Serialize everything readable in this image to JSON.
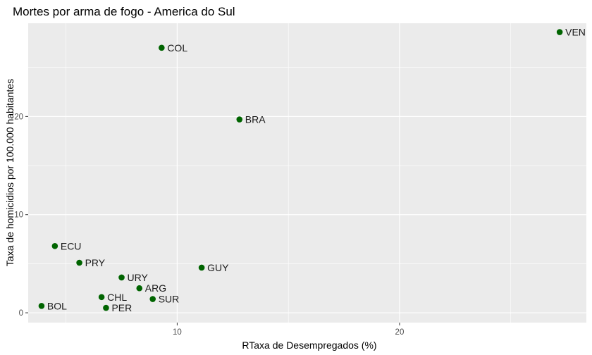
{
  "chart_data": {
    "type": "scatter",
    "title": "Mortes por arma de fogo - America do Sul",
    "xlabel": "RTaxa de Desempregados (%)",
    "ylabel": "Taxa de homicidios por 100.000 habitantes",
    "xlim": [
      3.3,
      28.4
    ],
    "ylim": [
      -1.0,
      29.5
    ],
    "x_ticks": [
      10,
      20
    ],
    "y_ticks": [
      0,
      10,
      20
    ],
    "x_tick_labels": [
      "10",
      "20"
    ],
    "y_tick_labels": [
      "0",
      "10",
      "20"
    ],
    "grid": true,
    "point_color": "#006400",
    "panel_background": "#ebebeb",
    "points": [
      {
        "label": "VEN",
        "x": 27.2,
        "y": 28.6
      },
      {
        "label": "COL",
        "x": 9.3,
        "y": 27.0
      },
      {
        "label": "BRA",
        "x": 12.8,
        "y": 19.7
      },
      {
        "label": "ECU",
        "x": 4.5,
        "y": 6.8
      },
      {
        "label": "PRY",
        "x": 5.6,
        "y": 5.1
      },
      {
        "label": "GUY",
        "x": 11.1,
        "y": 4.6
      },
      {
        "label": "URY",
        "x": 7.5,
        "y": 3.6
      },
      {
        "label": "ARG",
        "x": 8.3,
        "y": 2.5
      },
      {
        "label": "CHL",
        "x": 6.6,
        "y": 1.6
      },
      {
        "label": "SUR",
        "x": 8.9,
        "y": 1.4
      },
      {
        "label": "BOL",
        "x": 3.9,
        "y": 0.7
      },
      {
        "label": "PER",
        "x": 6.8,
        "y": 0.5
      }
    ]
  }
}
